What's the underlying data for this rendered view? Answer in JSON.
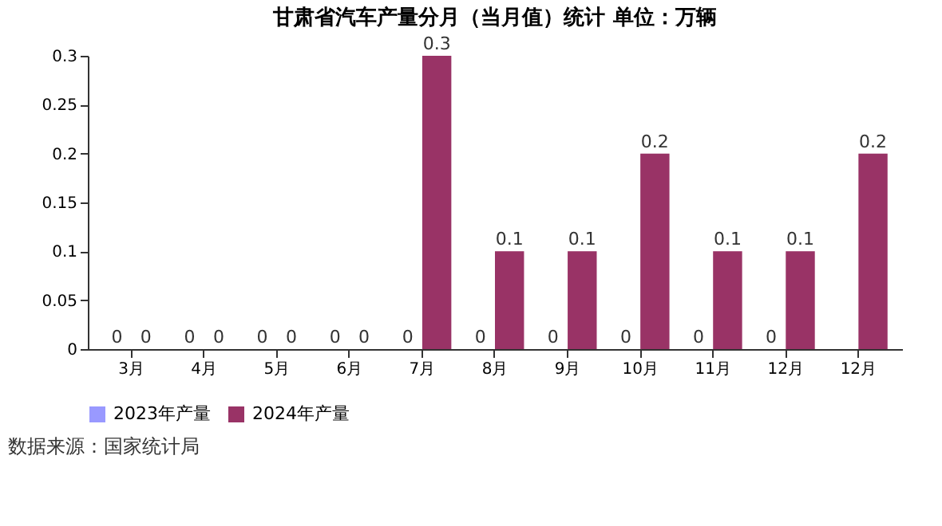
{
  "chart_data": {
    "type": "bar",
    "title": "甘肃省汽车产量分月（当月值）统计 单位：万辆",
    "categories": [
      "3月",
      "4月",
      "5月",
      "6月",
      "7月",
      "8月",
      "9月",
      "10月",
      "11月",
      "12月",
      "12月"
    ],
    "series": [
      {
        "name": "2023年产量",
        "color": "#9999ff",
        "values": [
          0,
          0,
          0,
          0,
          0,
          0,
          0,
          0,
          0,
          0,
          null
        ]
      },
      {
        "name": "2024年产量",
        "color": "#993366",
        "values": [
          0,
          0,
          0,
          0,
          0.3,
          0.1,
          0.1,
          0.2,
          0.1,
          0.1,
          0.2
        ]
      }
    ],
    "ylim": [
      0,
      0.3
    ],
    "yticks": [
      0,
      0.05,
      0.1,
      0.15,
      0.2,
      0.25,
      0.3
    ],
    "data_labels": true,
    "legend": "bottom",
    "grid": false,
    "annotations": [
      "数据来源：国家统计局"
    ]
  }
}
